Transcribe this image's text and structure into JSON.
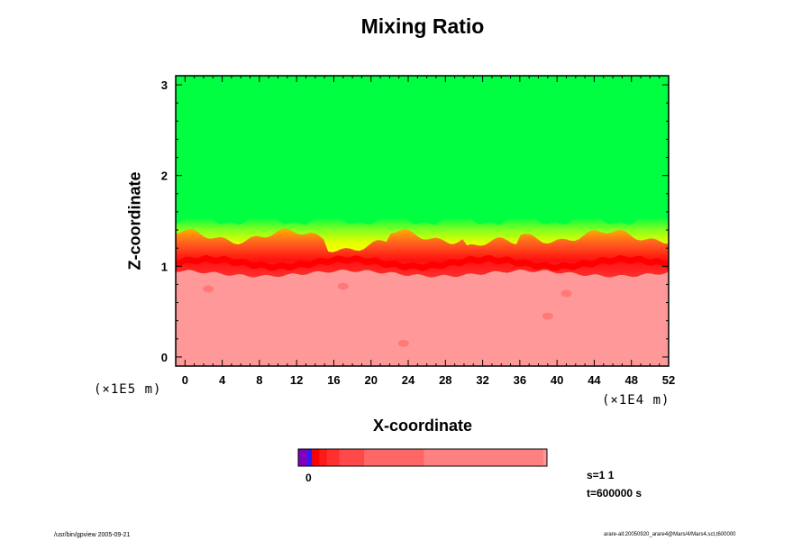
{
  "title": "Mixing Ratio",
  "chart_data": {
    "type": "heatmap",
    "title": "Mixing Ratio",
    "xlabel": "X-coordinate",
    "ylabel": "Z-coordinate",
    "x_unit": "(×1E4 m)",
    "y_unit": "(×1E5 m)",
    "xlim": [
      -1,
      52
    ],
    "ylim": [
      -0.1,
      3.1
    ],
    "x_ticks": [
      0,
      4,
      8,
      12,
      16,
      20,
      24,
      28,
      32,
      36,
      40,
      44,
      48,
      52
    ],
    "y_ticks": [
      0,
      1,
      2,
      3
    ],
    "grid": false,
    "regions": [
      {
        "name": "upper",
        "color": "#00ff40",
        "z_range": [
          1.5,
          3.1
        ]
      },
      {
        "name": "transition",
        "color": "#ffff00",
        "z_range": [
          1.3,
          1.5
        ]
      },
      {
        "name": "mixing layer",
        "color": "#ff0000",
        "z_range": [
          0.9,
          1.3
        ]
      },
      {
        "name": "lower",
        "color": "#ff9999",
        "z_range": [
          -0.1,
          0.9
        ]
      }
    ],
    "colorbar": {
      "tick_label": "0",
      "colors": [
        "#8000c0",
        "#2020ff",
        "#ff0000",
        "#ff1a1a",
        "#ff3030",
        "#ff4848",
        "#ff6666",
        "#ff8080",
        "#ff9696"
      ],
      "widths": [
        0.04,
        0.015,
        0.03,
        0.03,
        0.05,
        0.1,
        0.24,
        0.48,
        0.015
      ]
    }
  },
  "annotations": {
    "step": "s=1 1",
    "time": "t=600000 s",
    "colorbar_zero": "0"
  },
  "footer": {
    "left": "/usr/bin/gpview 2005-09-21",
    "right": "arare-all:20050920_arare4@Mars/4/Mars4,sct,t600000"
  }
}
